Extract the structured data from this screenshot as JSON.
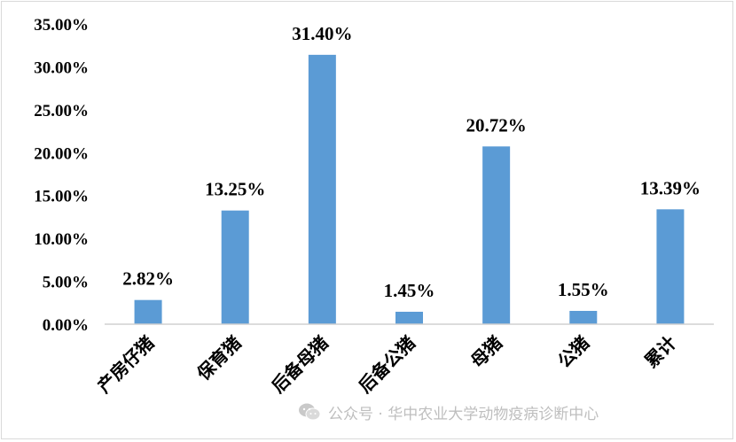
{
  "chart_data": {
    "type": "bar",
    "categories": [
      "产房仔猪",
      "保育猪",
      "后备母猪",
      "后备公猪",
      "母猪",
      "公猪",
      "累计"
    ],
    "values": [
      2.82,
      13.25,
      31.4,
      1.45,
      20.72,
      1.55,
      13.39
    ],
    "data_labels": [
      "2.82%",
      "13.25%",
      "31.40%",
      "1.45%",
      "20.72%",
      "1.55%",
      "13.39%"
    ],
    "ylim": [
      0,
      35
    ],
    "yticks": [
      "0.00%",
      "5.00%",
      "10.00%",
      "15.00%",
      "20.00%",
      "25.00%",
      "30.00%",
      "35.00%"
    ],
    "grid": false,
    "bar_color": "#5b9bd5"
  },
  "watermark": {
    "text": "公众号 · 华中农业大学动物疫病诊断中心",
    "icon": "wechat-icon"
  }
}
